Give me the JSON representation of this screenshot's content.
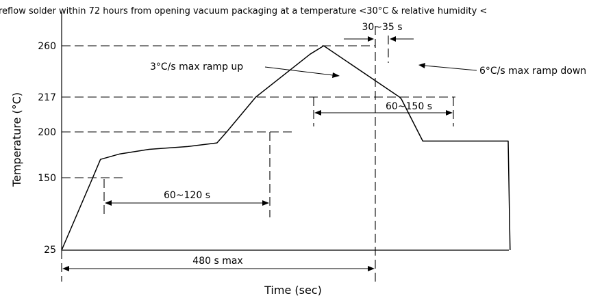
{
  "chart_data": {
    "type": "line",
    "title": "reflow solder within 72 hours from opening vacuum packaging at a temperature <30°C & relative humidity <",
    "xlabel": "Time (sec)",
    "ylabel": "Temperature (°C)",
    "y_ticks": [
      "260",
      "217",
      "200",
      "150",
      "25"
    ],
    "annotations": {
      "peak_window": "30~35 s",
      "ramp_up": "3°C/s max ramp up",
      "ramp_down": "6°C/s max ramp down",
      "above_217": "60~150 s",
      "soak": "60~120 s",
      "total": "480 s max"
    },
    "series": [
      {
        "x": [
          0,
          32,
          40,
          60,
          90,
          130,
          160,
          170,
          200,
          256,
          270,
          348,
          350,
          372,
          460,
          462
        ],
        "y": [
          25,
          150,
          170,
          176,
          181,
          184,
          188,
          200,
          217,
          253,
          260,
          217,
          216,
          190,
          190,
          25
        ]
      }
    ],
    "colors": {
      "line": "#000000",
      "background": "#ffffff"
    }
  }
}
